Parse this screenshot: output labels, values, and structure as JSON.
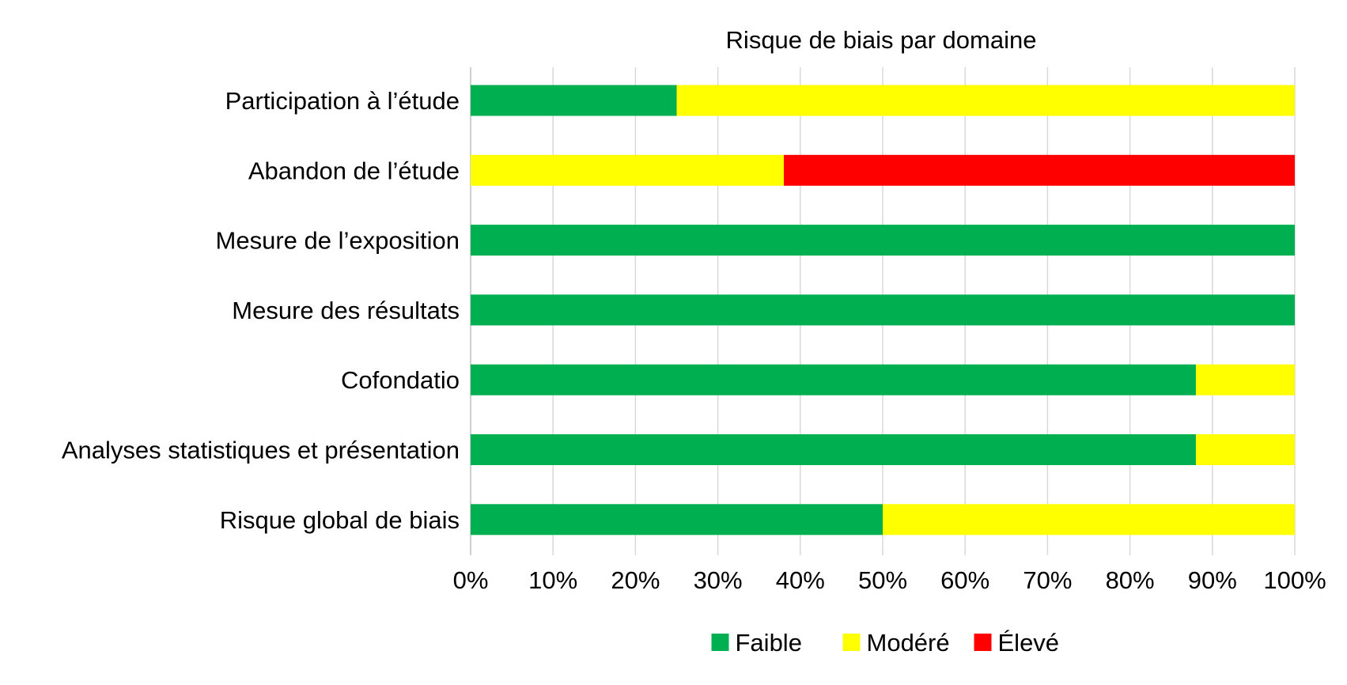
{
  "chart_data": {
    "type": "bar",
    "orientation": "horizontal",
    "stacked": true,
    "title": "Risque de biais par domaine",
    "categories": [
      "Participation à l’étude",
      "Abandon de l’étude",
      "Mesure de l’exposition",
      "Mesure des résultats",
      "Cofondatio",
      "Analyses statistiques et présentation",
      "Risque global de biais"
    ],
    "series": [
      {
        "name": "Faible",
        "color": "#00B050",
        "values": [
          25,
          0,
          100,
          100,
          88,
          88,
          50
        ]
      },
      {
        "name": "Modéré",
        "color": "#FFFF00",
        "values": [
          75,
          38,
          0,
          0,
          12,
          12,
          50
        ]
      },
      {
        "name": "Élevé",
        "color": "#FF0000",
        "values": [
          0,
          62,
          0,
          0,
          0,
          0,
          0
        ]
      }
    ],
    "x_ticks": [
      "0%",
      "10%",
      "20%",
      "30%",
      "40%",
      "50%",
      "60%",
      "70%",
      "80%",
      "90%",
      "100%"
    ],
    "xlim": [
      0,
      100
    ],
    "grid": "vertical",
    "legend_position": "bottom",
    "xlabel": "",
    "ylabel": ""
  }
}
